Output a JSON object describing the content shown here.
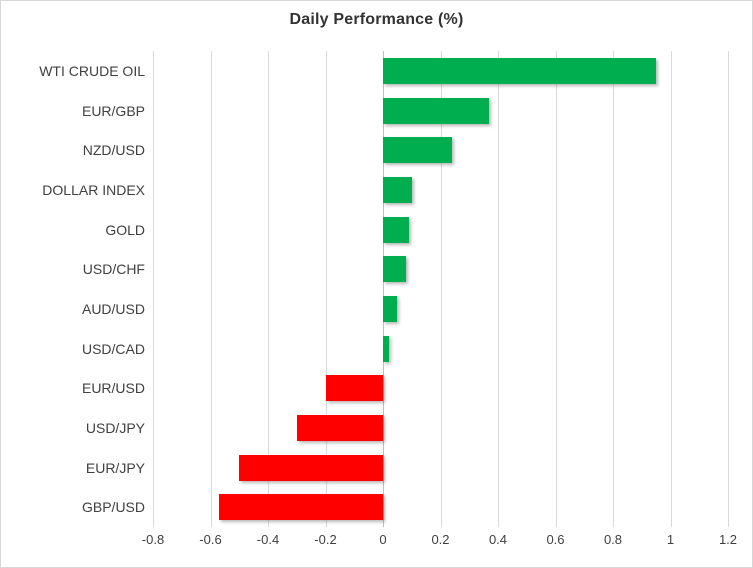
{
  "title": "Daily Performance (%)",
  "chart_data": {
    "type": "bar",
    "orientation": "horizontal",
    "title": "Daily Performance (%)",
    "categories": [
      "WTI CRUDE OIL",
      "EUR/GBP",
      "NZD/USD",
      "DOLLAR INDEX",
      "GOLD",
      "USD/CHF",
      "AUD/USD",
      "USD/CAD",
      "EUR/USD",
      "USD/JPY",
      "EUR/JPY",
      "GBP/USD"
    ],
    "values": [
      0.95,
      0.37,
      0.24,
      0.1,
      0.09,
      0.08,
      0.05,
      0.02,
      -0.2,
      -0.3,
      -0.5,
      -0.57
    ],
    "xlabel": "",
    "ylabel": "",
    "xlim": [
      -0.8,
      1.2
    ],
    "xticks": [
      -0.8,
      -0.6,
      -0.4,
      -0.2,
      0,
      0.2,
      0.4,
      0.6,
      0.8,
      1,
      1.2
    ],
    "xtick_labels": [
      "-0.8",
      "-0.6",
      "-0.4",
      "-0.2",
      "0",
      "0.2",
      "0.4",
      "0.6",
      "0.8",
      "1",
      "1.2"
    ],
    "grid": "vertical",
    "legend": "none",
    "colors": {
      "positive": "#00AE4F",
      "negative": "#FF0000",
      "gridline": "#D9D9D9",
      "zero_axis": "#BFBFBF",
      "text": "#404040",
      "title_text": "#333333",
      "chart_border": "#D6D6D6"
    }
  }
}
